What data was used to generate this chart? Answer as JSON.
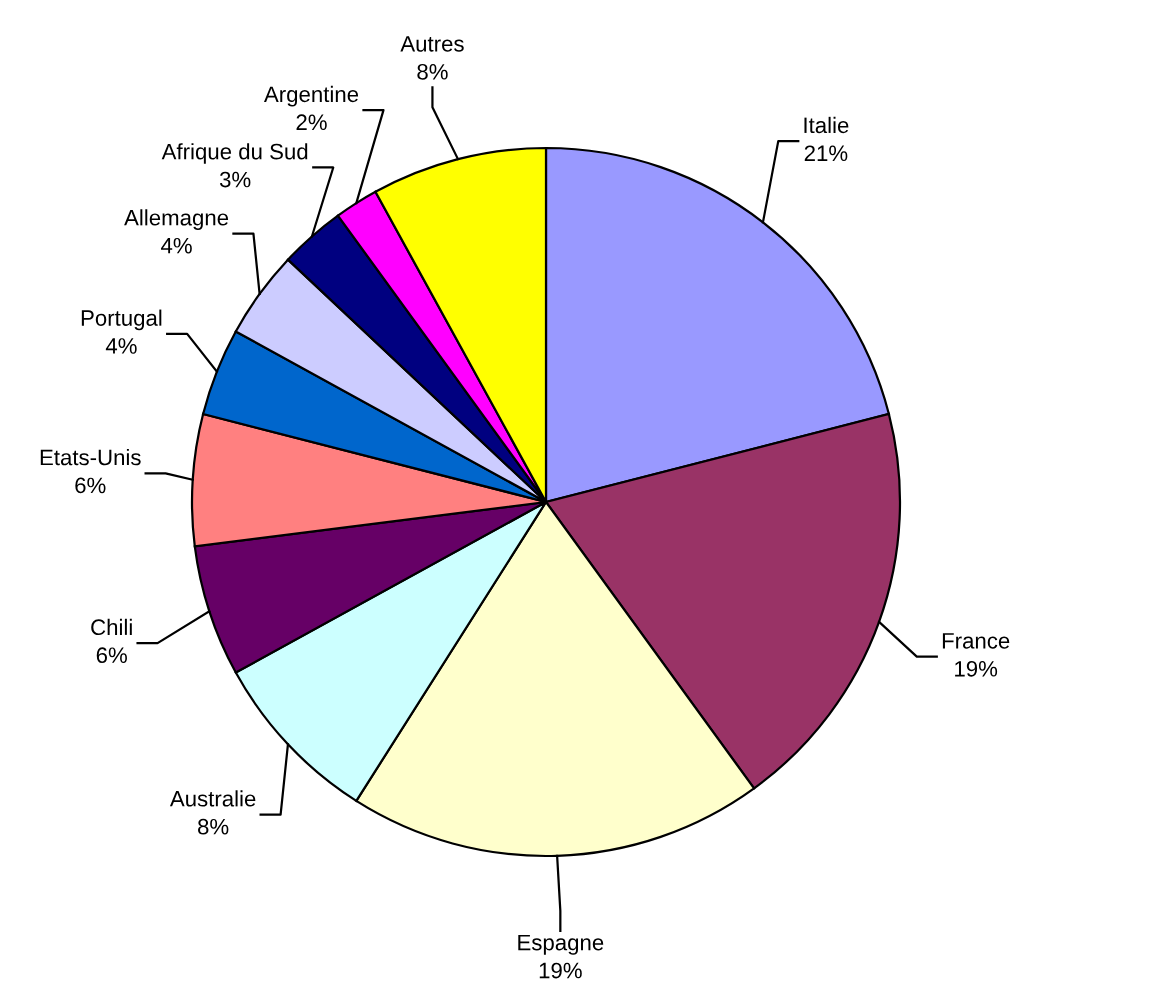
{
  "chart_data": {
    "type": "pie",
    "categories": [
      "Italie",
      "France",
      "Espagne",
      "Australie",
      "Chili",
      "Etats-Unis",
      "Portugal",
      "Allemagne",
      "Afrique du Sud",
      "Argentine",
      "Autres"
    ],
    "values": [
      21,
      19,
      19,
      8,
      6,
      6,
      4,
      4,
      3,
      2,
      8
    ],
    "colors": [
      "#9999ff",
      "#993366",
      "#ffffcc",
      "#ccffff",
      "#660066",
      "#ff8080",
      "#0066cc",
      "#ccccff",
      "#000080",
      "#ff00ff",
      "#ffff00"
    ],
    "value_labels": [
      "21%",
      "19%",
      "19%",
      "8%",
      "6%",
      "6%",
      "4%",
      "4%",
      "3%",
      "2%",
      "8%"
    ]
  }
}
